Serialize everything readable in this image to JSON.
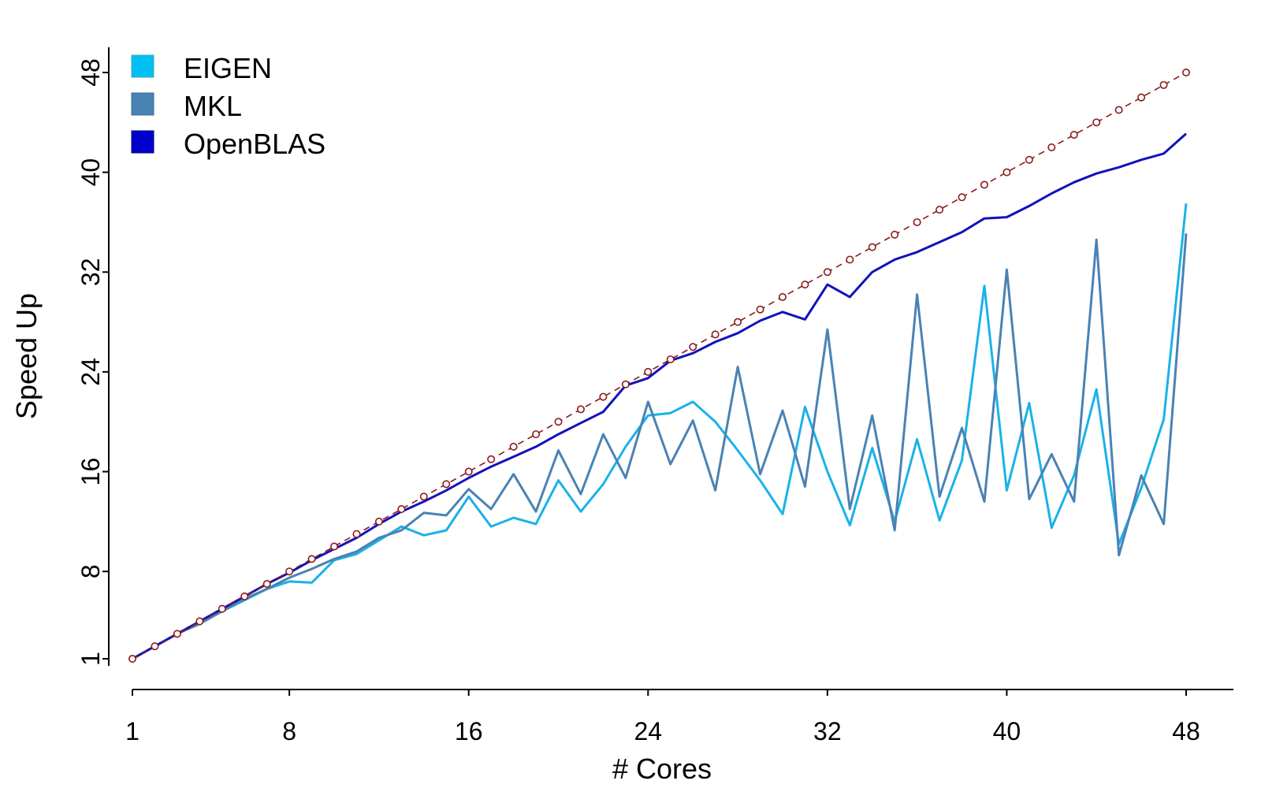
{
  "chart_data": {
    "type": "line",
    "xlabel": "# Cores",
    "ylabel": "Speed Up",
    "xlim": [
      1,
      48
    ],
    "ylim": [
      1,
      48
    ],
    "x_ticks": [
      "1",
      "8",
      "16",
      "24",
      "32",
      "40",
      "48"
    ],
    "y_ticks": [
      "1",
      "8",
      "16",
      "24",
      "32",
      "40",
      "48"
    ],
    "grid": false,
    "legend_position": "top-left",
    "x": [
      1,
      2,
      3,
      4,
      5,
      6,
      7,
      8,
      9,
      10,
      11,
      12,
      13,
      14,
      15,
      16,
      17,
      18,
      19,
      20,
      21,
      22,
      23,
      24,
      25,
      26,
      27,
      28,
      29,
      30,
      31,
      32,
      33,
      34,
      35,
      36,
      37,
      38,
      39,
      40,
      41,
      42,
      43,
      44,
      45,
      46,
      47,
      48
    ],
    "series": [
      {
        "name": "EIGEN",
        "color": "#1ab2e8",
        "values": [
          1,
          2,
          3,
          3.9,
          4.8,
          5.7,
          6.6,
          7.2,
          7.1,
          8.9,
          9.4,
          10.5,
          11.6,
          10.9,
          11.3,
          14,
          11.6,
          12.3,
          11.8,
          15.3,
          12.8,
          15,
          18,
          20.5,
          20.7,
          21.6,
          20,
          17.7,
          15.3,
          12.6,
          21.2,
          16,
          11.7,
          17.9,
          12,
          18.6,
          12.1,
          16.9,
          30.9,
          14.5,
          21.5,
          11.5,
          15.7,
          22.6,
          10.2,
          14.7,
          20.2,
          37.5
        ]
      },
      {
        "name": "MKL",
        "color": "#4a82b4",
        "values": [
          1,
          2,
          3,
          3.8,
          4.8,
          5.8,
          6.6,
          7.5,
          8.2,
          9,
          9.6,
          10.7,
          11.3,
          12.7,
          12.5,
          14.6,
          13,
          15.8,
          12.8,
          17.7,
          14.2,
          19,
          15.5,
          21.6,
          16.6,
          20.1,
          14.5,
          24.4,
          15.8,
          20.9,
          14.8,
          27.4,
          13,
          20.5,
          11.3,
          30.2,
          14,
          19.5,
          13.6,
          32.2,
          13.8,
          17.4,
          13.6,
          34.6,
          9.3,
          15.7,
          11.8,
          35.1
        ]
      },
      {
        "name": "OpenBLAS",
        "color": "#1212bb",
        "values": [
          1,
          2,
          3,
          4,
          5,
          6,
          7,
          7.9,
          8.9,
          9.8,
          10.7,
          11.8,
          12.8,
          13.6,
          14.5,
          15.5,
          16.4,
          17.2,
          18,
          19,
          19.9,
          20.8,
          22.9,
          23.5,
          24.9,
          25.5,
          26.4,
          27.1,
          28.1,
          28.8,
          28.2,
          31,
          30,
          32,
          33,
          33.6,
          34.4,
          35.2,
          36.3,
          36.4,
          37.3,
          38.3,
          39.2,
          39.9,
          40.4,
          41,
          41.5,
          43.1
        ]
      },
      {
        "color": "#8b1a1a",
        "values": [
          1,
          2,
          3,
          4,
          5,
          6,
          7,
          8,
          9,
          10,
          11,
          12,
          13,
          14,
          15,
          16,
          17,
          18,
          19,
          20,
          21,
          22,
          23,
          24,
          25,
          26,
          27,
          28,
          29,
          30,
          31,
          32,
          33,
          34,
          35,
          36,
          37,
          38,
          39,
          40,
          41,
          42,
          43,
          44,
          45,
          46,
          47,
          48
        ]
      }
    ]
  }
}
